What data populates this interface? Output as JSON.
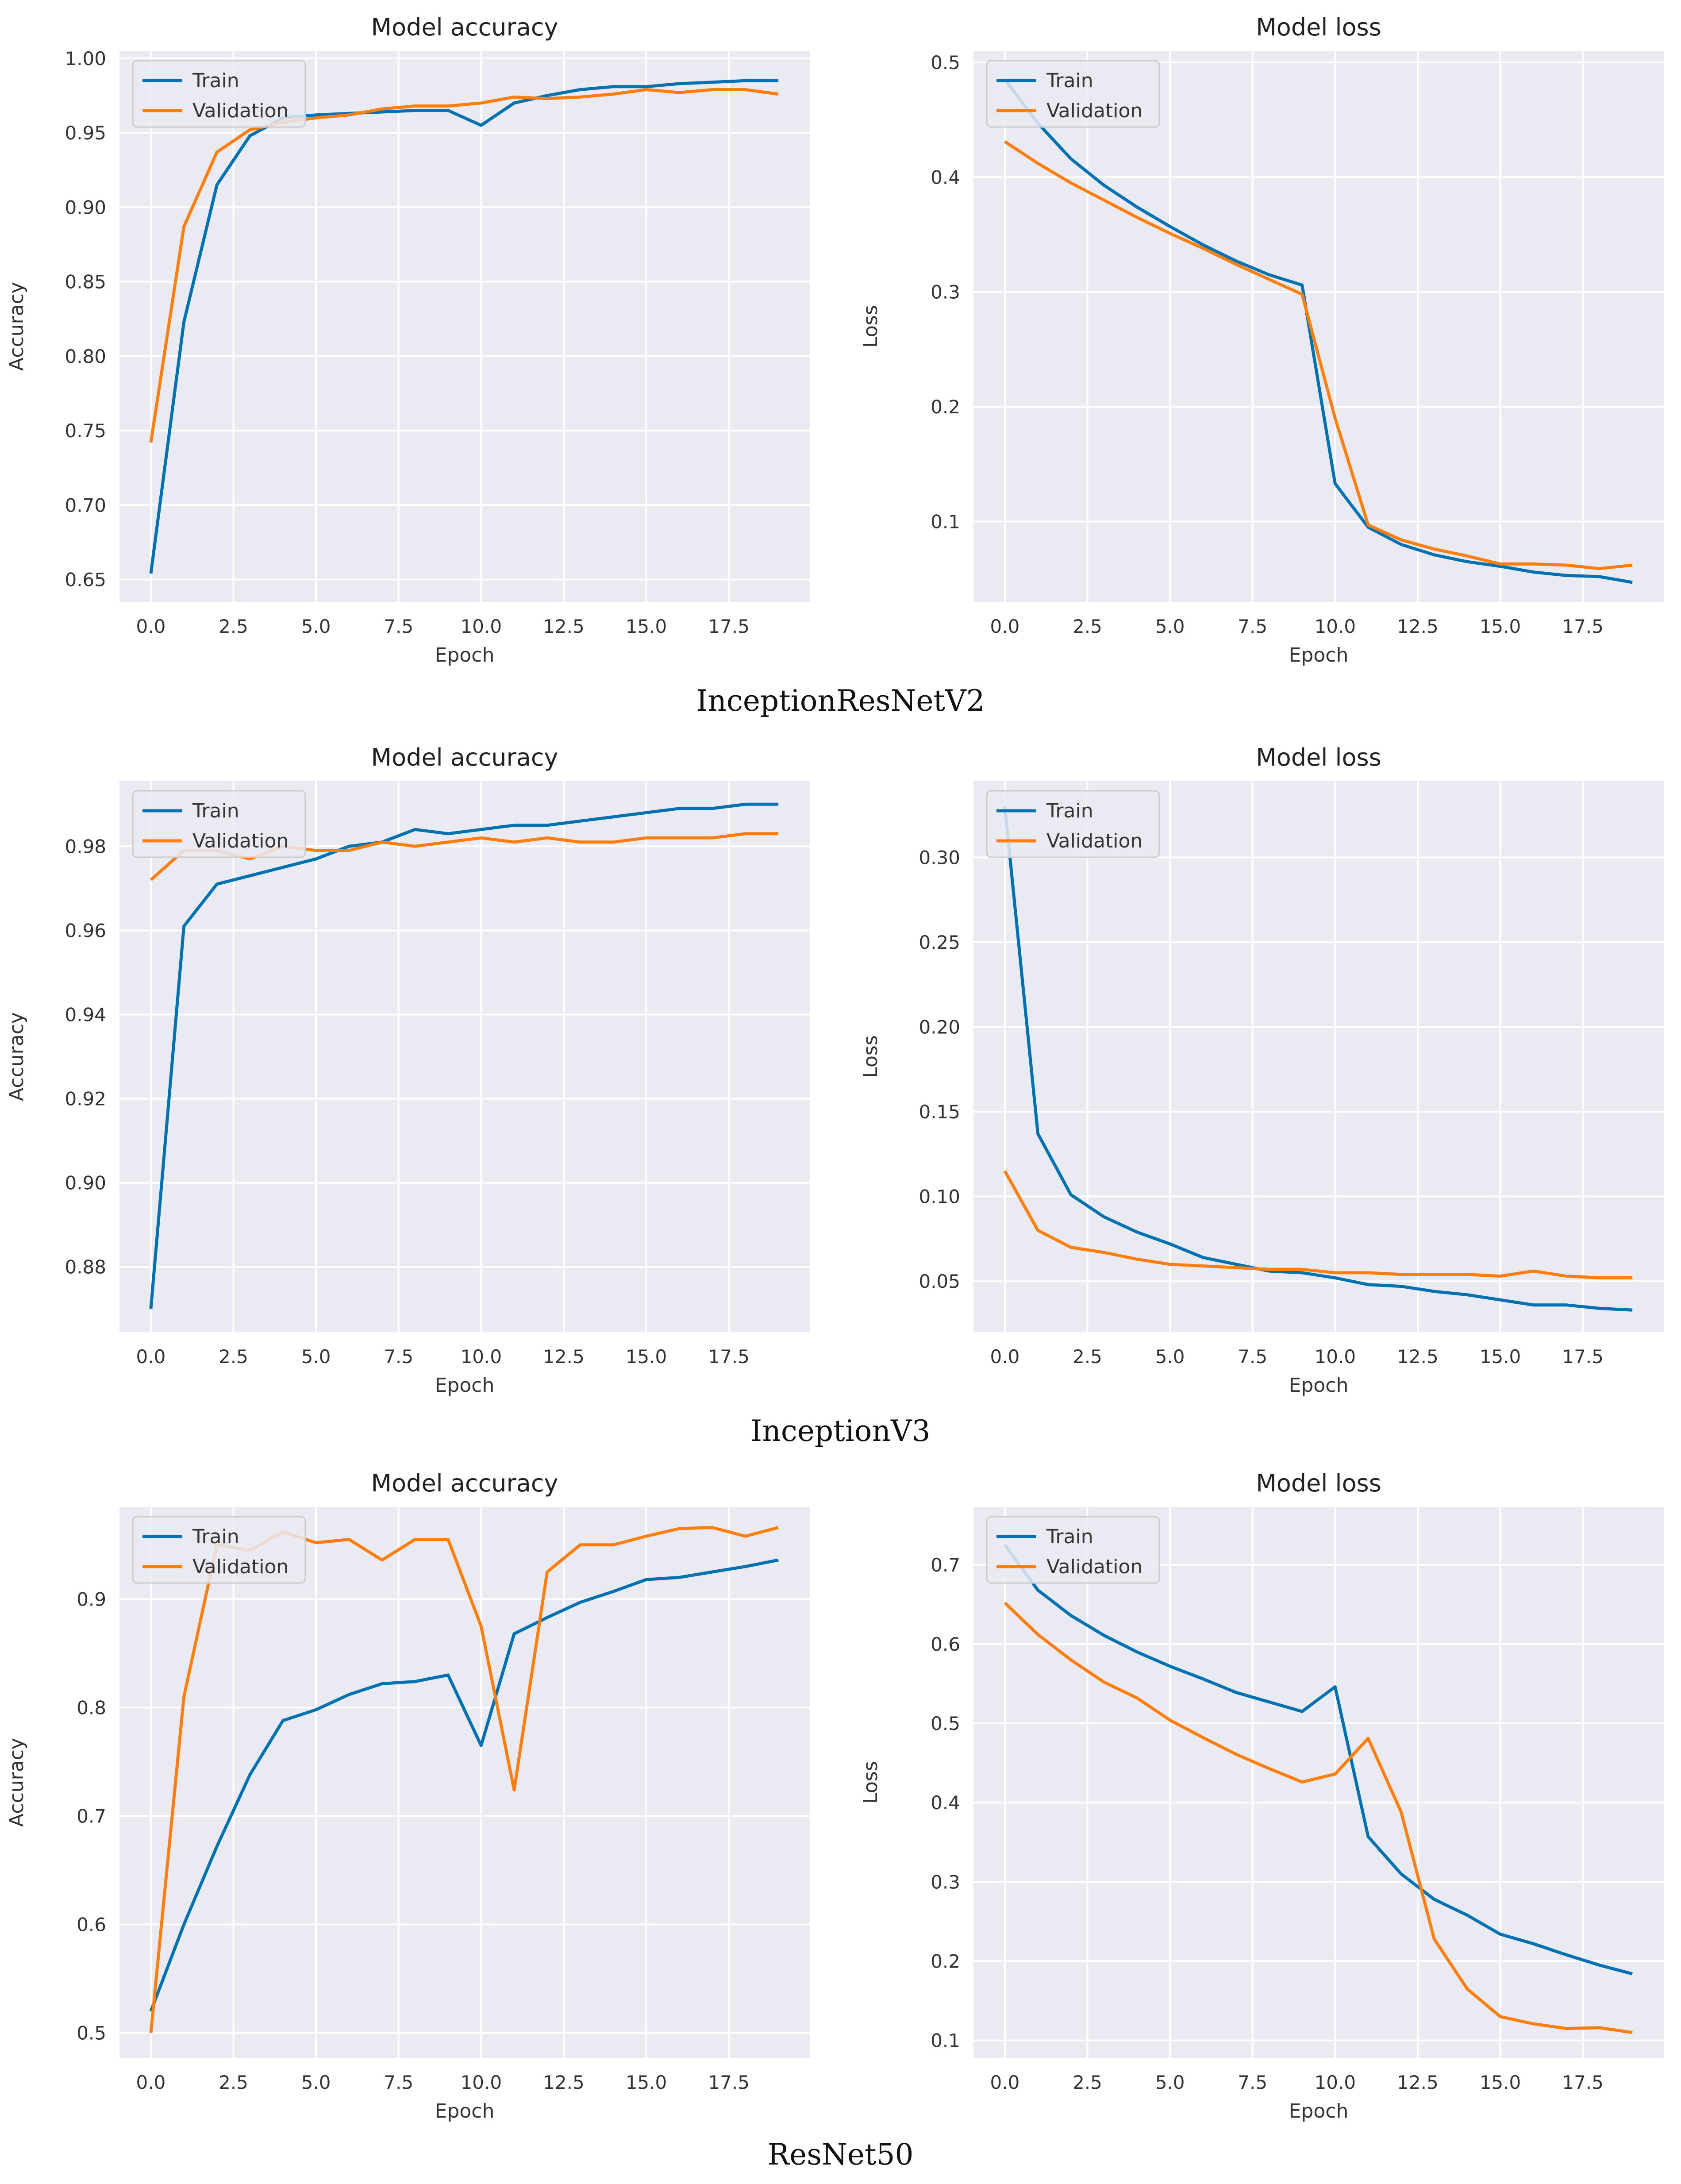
{
  "colors": {
    "train": "#0072B2",
    "validation": "#FF7F0E",
    "plot_bg": "#EAEAF2",
    "grid": "#FFFFFF",
    "text": "#333333"
  },
  "captions": [
    "InceptionResNetV2",
    "InceptionV3",
    "ResNet50"
  ],
  "chart_data": [
    {
      "id": "irv2-acc",
      "model": "InceptionResNetV2",
      "type": "line",
      "title": "Model accuracy",
      "xlabel": "Epoch",
      "ylabel": "Accuracy",
      "xlim": [
        -0.95,
        19.95
      ],
      "ylim": [
        0.635,
        1.005
      ],
      "xticks": [
        0.0,
        2.5,
        5.0,
        7.5,
        10.0,
        12.5,
        15.0,
        17.5
      ],
      "xtick_labels": [
        "0.0",
        "2.5",
        "5.0",
        "7.5",
        "10.0",
        "12.5",
        "15.0",
        "17.5"
      ],
      "yticks": [
        0.65,
        0.7,
        0.75,
        0.8,
        0.85,
        0.9,
        0.95,
        1.0
      ],
      "ytick_labels": [
        "0.65",
        "0.70",
        "0.75",
        "0.80",
        "0.85",
        "0.90",
        "0.95",
        "1.00"
      ],
      "legend": {
        "position": "upper-left",
        "labels": [
          "Train",
          "Validation"
        ]
      },
      "x": [
        0,
        1,
        2,
        3,
        4,
        5,
        6,
        7,
        8,
        9,
        10,
        11,
        12,
        13,
        14,
        15,
        16,
        17,
        18,
        19
      ],
      "series": [
        {
          "name": "Train",
          "values": [
            0.654,
            0.823,
            0.915,
            0.948,
            0.96,
            0.962,
            0.963,
            0.964,
            0.965,
            0.965,
            0.955,
            0.97,
            0.975,
            0.979,
            0.981,
            0.981,
            0.983,
            0.984,
            0.985,
            0.985
          ]
        },
        {
          "name": "Validation",
          "values": [
            0.742,
            0.887,
            0.937,
            0.952,
            0.957,
            0.96,
            0.962,
            0.966,
            0.968,
            0.968,
            0.97,
            0.974,
            0.973,
            0.974,
            0.976,
            0.979,
            0.977,
            0.979,
            0.979,
            0.976
          ]
        }
      ]
    },
    {
      "id": "irv2-loss",
      "model": "InceptionResNetV2",
      "type": "line",
      "title": "Model loss",
      "xlabel": "Epoch",
      "ylabel": "Loss",
      "xlim": [
        -0.95,
        19.95
      ],
      "ylim": [
        0.03,
        0.51
      ],
      "xticks": [
        0.0,
        2.5,
        5.0,
        7.5,
        10.0,
        12.5,
        15.0,
        17.5
      ],
      "xtick_labels": [
        "0.0",
        "2.5",
        "5.0",
        "7.5",
        "10.0",
        "12.5",
        "15.0",
        "17.5"
      ],
      "yticks": [
        0.1,
        0.2,
        0.3,
        0.4,
        0.5
      ],
      "ytick_labels": [
        "0.1",
        "0.2",
        "0.3",
        "0.4",
        "0.5"
      ],
      "legend": {
        "position": "upper-left",
        "labels": [
          "Train",
          "Validation"
        ]
      },
      "x": [
        0,
        1,
        2,
        3,
        4,
        5,
        6,
        7,
        8,
        9,
        10,
        11,
        12,
        13,
        14,
        15,
        16,
        17,
        18,
        19
      ],
      "series": [
        {
          "name": "Train",
          "values": [
            0.485,
            0.447,
            0.416,
            0.393,
            0.374,
            0.357,
            0.341,
            0.327,
            0.315,
            0.306,
            0.133,
            0.095,
            0.08,
            0.071,
            0.065,
            0.061,
            0.056,
            0.053,
            0.052,
            0.047
          ]
        },
        {
          "name": "Validation",
          "values": [
            0.431,
            0.412,
            0.395,
            0.38,
            0.365,
            0.351,
            0.338,
            0.324,
            0.311,
            0.298,
            0.19,
            0.097,
            0.084,
            0.076,
            0.07,
            0.063,
            0.063,
            0.062,
            0.059,
            0.062
          ]
        }
      ]
    },
    {
      "id": "iv3-acc",
      "model": "InceptionV3",
      "type": "line",
      "title": "Model accuracy",
      "xlabel": "Epoch",
      "ylabel": "Accuracy",
      "xlim": [
        -0.95,
        19.95
      ],
      "ylim": [
        0.8645,
        0.9955
      ],
      "xticks": [
        0.0,
        2.5,
        5.0,
        7.5,
        10.0,
        12.5,
        15.0,
        17.5
      ],
      "xtick_labels": [
        "0.0",
        "2.5",
        "5.0",
        "7.5",
        "10.0",
        "12.5",
        "15.0",
        "17.5"
      ],
      "yticks": [
        0.88,
        0.9,
        0.92,
        0.94,
        0.96,
        0.98
      ],
      "ytick_labels": [
        "0.88",
        "0.90",
        "0.92",
        "0.94",
        "0.96",
        "0.98"
      ],
      "legend": {
        "position": "upper-left",
        "labels": [
          "Train",
          "Validation"
        ]
      },
      "x": [
        0,
        1,
        2,
        3,
        4,
        5,
        6,
        7,
        8,
        9,
        10,
        11,
        12,
        13,
        14,
        15,
        16,
        17,
        18,
        19
      ],
      "series": [
        {
          "name": "Train",
          "values": [
            0.87,
            0.961,
            0.971,
            0.973,
            0.975,
            0.977,
            0.98,
            0.981,
            0.984,
            0.983,
            0.984,
            0.985,
            0.985,
            0.986,
            0.987,
            0.988,
            0.989,
            0.989,
            0.99,
            0.99
          ]
        },
        {
          "name": "Validation",
          "values": [
            0.972,
            0.979,
            0.979,
            0.977,
            0.98,
            0.979,
            0.979,
            0.981,
            0.98,
            0.981,
            0.982,
            0.981,
            0.982,
            0.981,
            0.981,
            0.982,
            0.982,
            0.982,
            0.983,
            0.983
          ]
        }
      ]
    },
    {
      "id": "iv3-loss",
      "model": "InceptionV3",
      "type": "line",
      "title": "Model loss",
      "xlabel": "Epoch",
      "ylabel": "Loss",
      "xlim": [
        -0.95,
        19.95
      ],
      "ylim": [
        0.02,
        0.345
      ],
      "xticks": [
        0.0,
        2.5,
        5.0,
        7.5,
        10.0,
        12.5,
        15.0,
        17.5
      ],
      "xtick_labels": [
        "0.0",
        "2.5",
        "5.0",
        "7.5",
        "10.0",
        "12.5",
        "15.0",
        "17.5"
      ],
      "yticks": [
        0.05,
        0.1,
        0.15,
        0.2,
        0.25,
        0.3
      ],
      "ytick_labels": [
        "0.05",
        "0.10",
        "0.15",
        "0.20",
        "0.25",
        "0.30"
      ],
      "legend": {
        "position": "upper-left",
        "labels": [
          "Train",
          "Validation"
        ]
      },
      "x": [
        0,
        1,
        2,
        3,
        4,
        5,
        6,
        7,
        8,
        9,
        10,
        11,
        12,
        13,
        14,
        15,
        16,
        17,
        18,
        19
      ],
      "series": [
        {
          "name": "Train",
          "values": [
            0.33,
            0.137,
            0.101,
            0.088,
            0.079,
            0.072,
            0.064,
            0.06,
            0.056,
            0.055,
            0.052,
            0.048,
            0.047,
            0.044,
            0.042,
            0.039,
            0.036,
            0.036,
            0.034,
            0.033
          ]
        },
        {
          "name": "Validation",
          "values": [
            0.115,
            0.08,
            0.07,
            0.067,
            0.063,
            0.06,
            0.059,
            0.058,
            0.057,
            0.057,
            0.055,
            0.055,
            0.054,
            0.054,
            0.054,
            0.053,
            0.056,
            0.053,
            0.052,
            0.052
          ]
        }
      ]
    },
    {
      "id": "r50-acc",
      "model": "ResNet50",
      "type": "line",
      "title": "Model accuracy",
      "xlabel": "Epoch",
      "ylabel": "Accuracy",
      "xlim": [
        -0.95,
        19.95
      ],
      "ylim": [
        0.477,
        0.985
      ],
      "xticks": [
        0.0,
        2.5,
        5.0,
        7.5,
        10.0,
        12.5,
        15.0,
        17.5
      ],
      "xtick_labels": [
        "0.0",
        "2.5",
        "5.0",
        "7.5",
        "10.0",
        "12.5",
        "15.0",
        "17.5"
      ],
      "yticks": [
        0.5,
        0.6,
        0.7,
        0.8,
        0.9
      ],
      "ytick_labels": [
        "0.5",
        "0.6",
        "0.7",
        "0.8",
        "0.9"
      ],
      "legend": {
        "position": "upper-left",
        "labels": [
          "Train",
          "Validation"
        ]
      },
      "x": [
        0,
        1,
        2,
        3,
        4,
        5,
        6,
        7,
        8,
        9,
        10,
        11,
        12,
        13,
        14,
        15,
        16,
        17,
        18,
        19
      ],
      "series": [
        {
          "name": "Train",
          "values": [
            0.52,
            0.6,
            0.672,
            0.738,
            0.788,
            0.798,
            0.812,
            0.822,
            0.824,
            0.83,
            0.765,
            0.868,
            0.883,
            0.897,
            0.907,
            0.918,
            0.92,
            0.925,
            0.93,
            0.936
          ]
        },
        {
          "name": "Validation",
          "values": [
            0.5,
            0.81,
            0.95,
            0.945,
            0.962,
            0.952,
            0.955,
            0.936,
            0.955,
            0.955,
            0.875,
            0.724,
            0.925,
            0.95,
            0.95,
            0.958,
            0.965,
            0.966,
            0.958,
            0.966
          ]
        }
      ]
    },
    {
      "id": "r50-loss",
      "model": "ResNet50",
      "type": "line",
      "title": "Model loss",
      "xlabel": "Epoch",
      "ylabel": "Loss",
      "xlim": [
        -0.95,
        19.95
      ],
      "ylim": [
        0.078,
        0.773
      ],
      "xticks": [
        0.0,
        2.5,
        5.0,
        7.5,
        10.0,
        12.5,
        15.0,
        17.5
      ],
      "xtick_labels": [
        "0.0",
        "2.5",
        "5.0",
        "7.5",
        "10.0",
        "12.5",
        "15.0",
        "17.5"
      ],
      "yticks": [
        0.1,
        0.2,
        0.3,
        0.4,
        0.5,
        0.6,
        0.7
      ],
      "ytick_labels": [
        "0.1",
        "0.2",
        "0.3",
        "0.4",
        "0.5",
        "0.6",
        "0.7"
      ],
      "legend": {
        "position": "upper-left",
        "labels": [
          "Train",
          "Validation"
        ]
      },
      "x": [
        0,
        1,
        2,
        3,
        4,
        5,
        6,
        7,
        8,
        9,
        10,
        11,
        12,
        13,
        14,
        15,
        16,
        17,
        18,
        19
      ],
      "series": [
        {
          "name": "Train",
          "values": [
            0.725,
            0.668,
            0.636,
            0.611,
            0.59,
            0.572,
            0.556,
            0.539,
            0.527,
            0.515,
            0.546,
            0.357,
            0.31,
            0.278,
            0.258,
            0.234,
            0.222,
            0.208,
            0.195,
            0.184
          ]
        },
        {
          "name": "Validation",
          "values": [
            0.652,
            0.612,
            0.58,
            0.552,
            0.532,
            0.504,
            0.482,
            0.461,
            0.443,
            0.426,
            0.436,
            0.481,
            0.388,
            0.228,
            0.165,
            0.13,
            0.121,
            0.115,
            0.116,
            0.11
          ]
        }
      ]
    }
  ]
}
